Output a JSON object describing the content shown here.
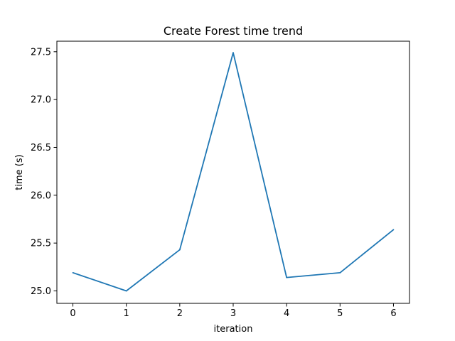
{
  "chart_data": {
    "type": "line",
    "title": "Create Forest time trend",
    "xlabel": "iteration",
    "ylabel": "time (s)",
    "x": [
      0,
      1,
      2,
      3,
      4,
      5,
      6
    ],
    "series": [
      {
        "values": [
          25.19,
          25.0,
          25.43,
          27.49,
          25.14,
          25.19,
          25.64
        ],
        "color": "#1f77b4"
      }
    ],
    "xlim": [
      -0.3,
      6.3
    ],
    "ylim": [
      24.87,
      27.61
    ],
    "x_ticks": [
      "0",
      "1",
      "2",
      "3",
      "4",
      "5",
      "6"
    ],
    "y_ticks": [
      "25.0",
      "25.5",
      "26.0",
      "26.5",
      "27.0",
      "27.5"
    ],
    "grid": false,
    "legend": "none"
  }
}
